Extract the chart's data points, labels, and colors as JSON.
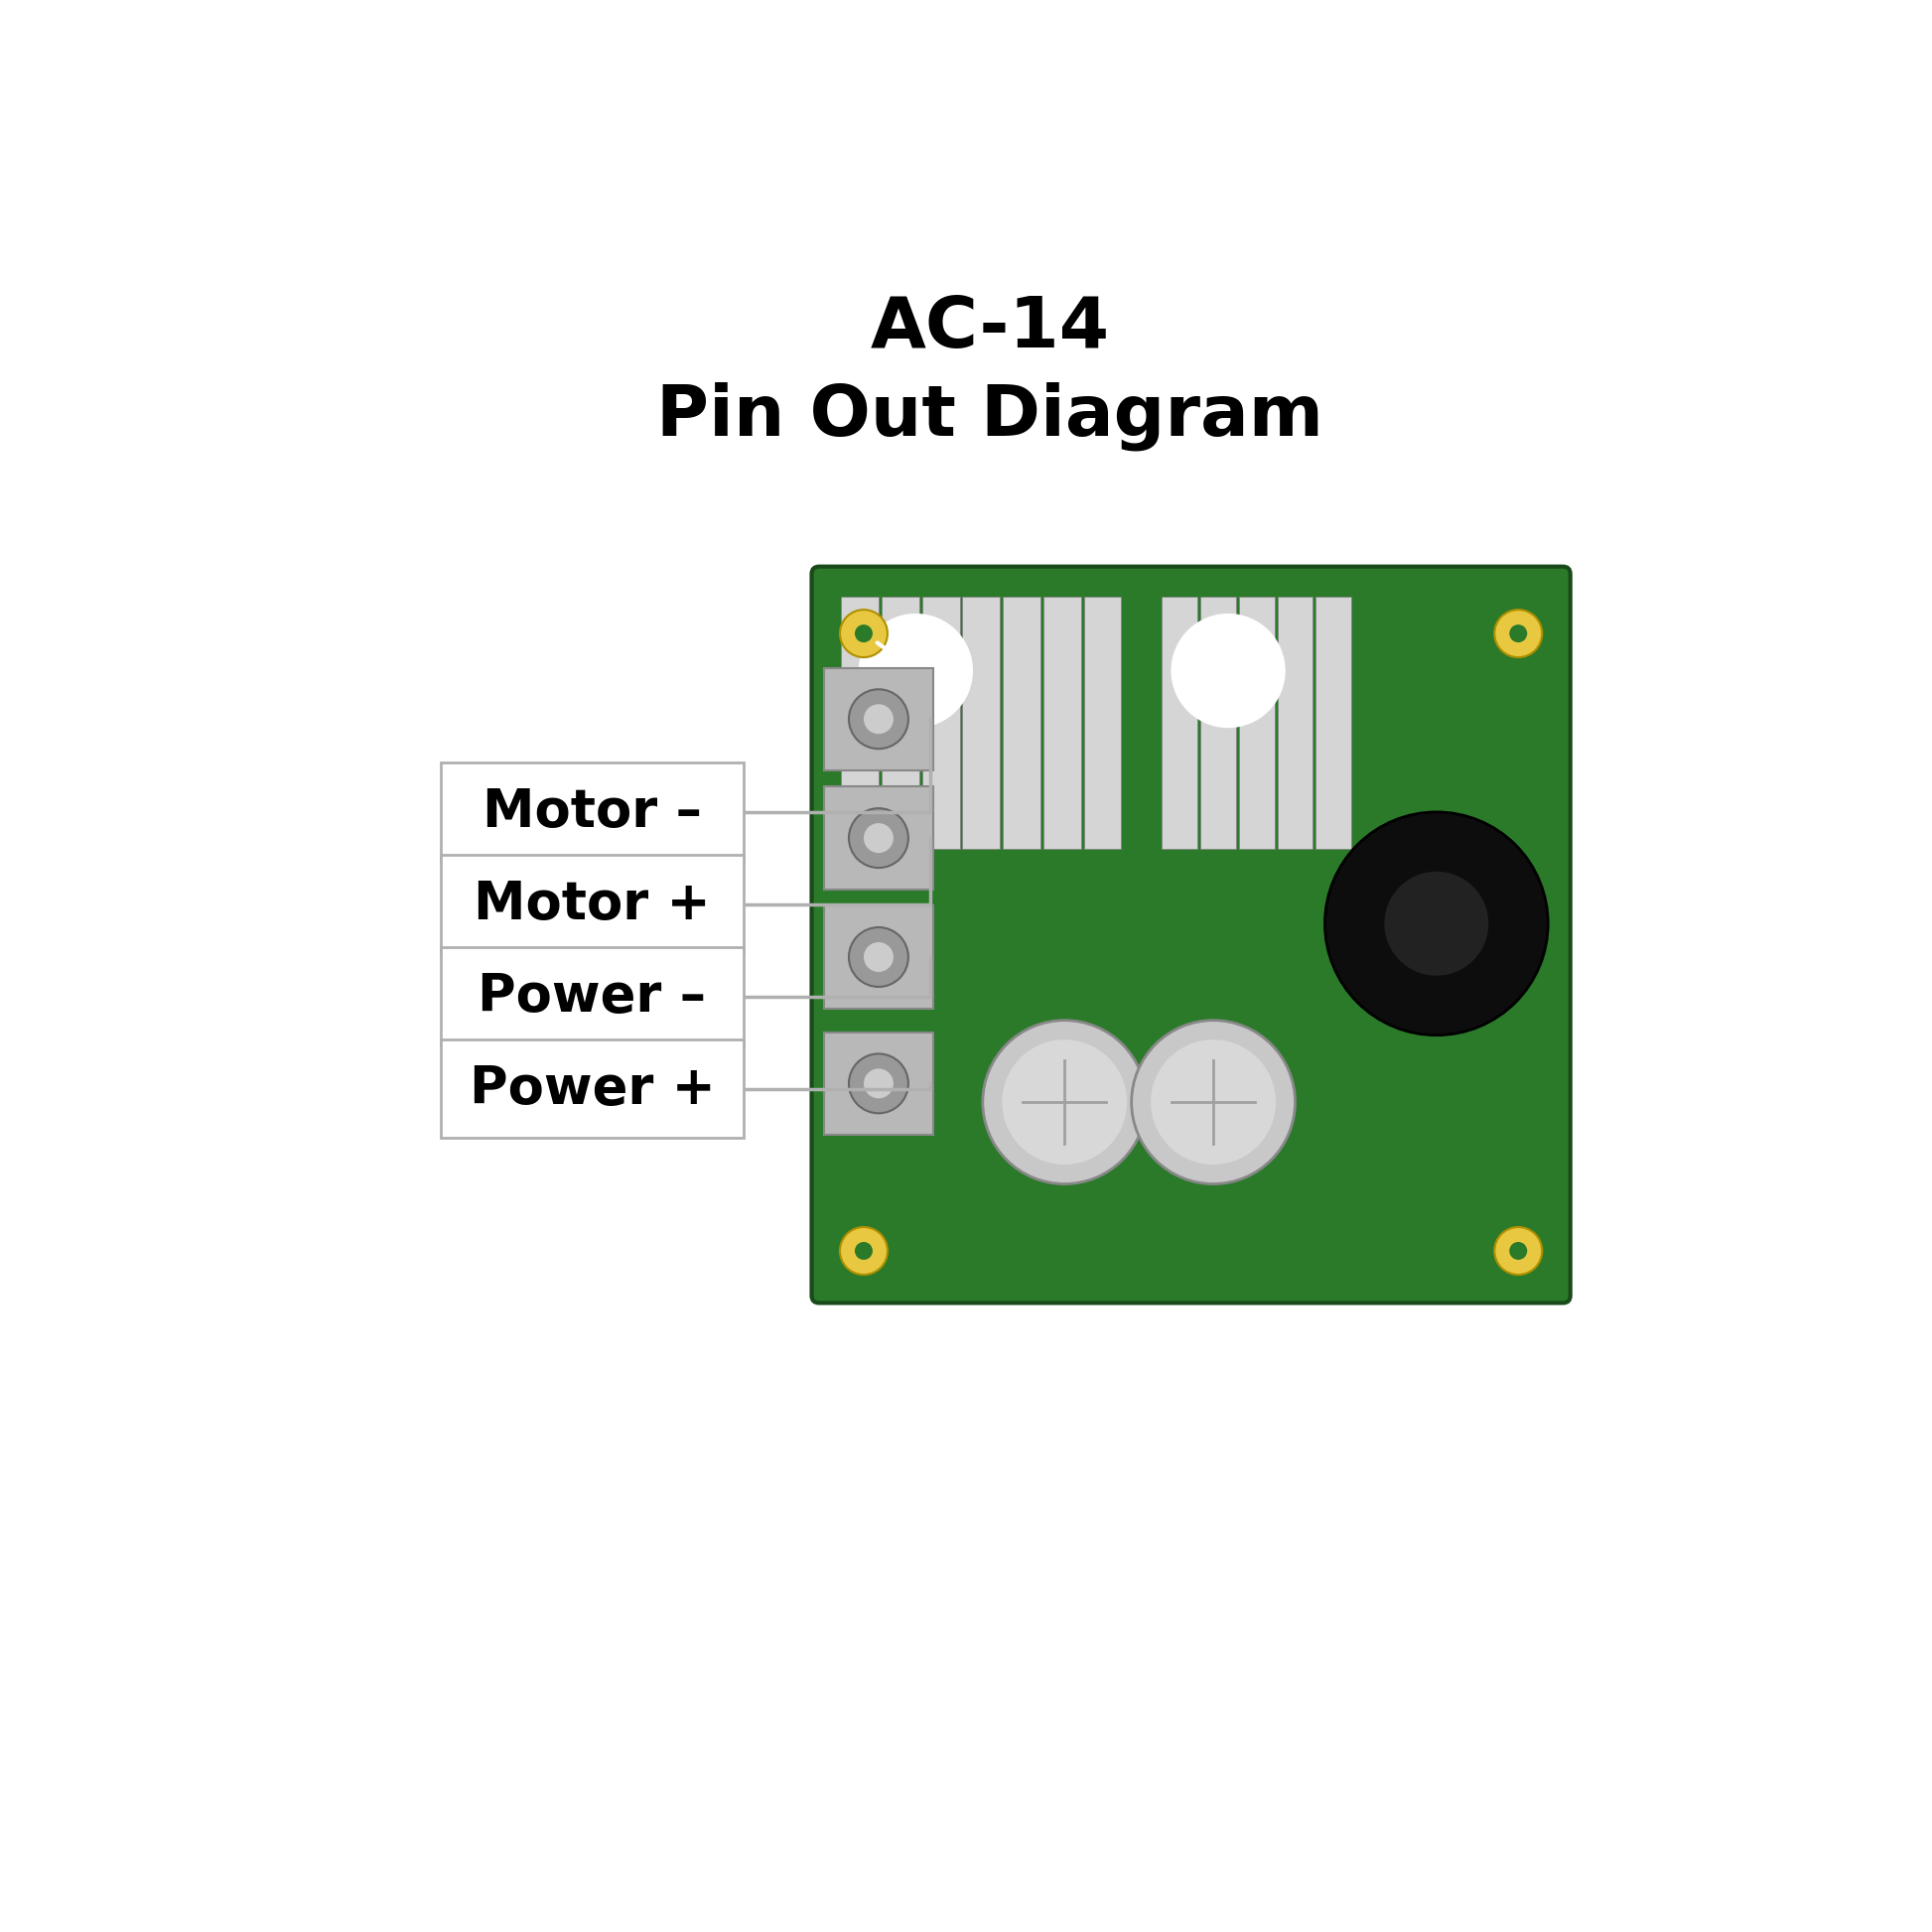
{
  "title_line1": "AC-14",
  "title_line2": "Pin Out Diagram",
  "title_fontsize": 52,
  "title_fontweight": "bold",
  "background_color": "#ffffff",
  "labels": [
    "Motor –",
    "Motor +",
    "Power –",
    "Power +"
  ],
  "label_fontsize": 38,
  "label_fontweight": "bold",
  "pcb_color": "#2a7a2a",
  "pcb_edge_color": "#1a4a1a",
  "heatsink_color": "#c8c8c8",
  "knob_color": "#111111",
  "terminal_color": "#b5b5b5",
  "cap_color": "#d0d0d0",
  "label_edge_color": "#b0b0b0",
  "connector_color": "#b0b0b0"
}
